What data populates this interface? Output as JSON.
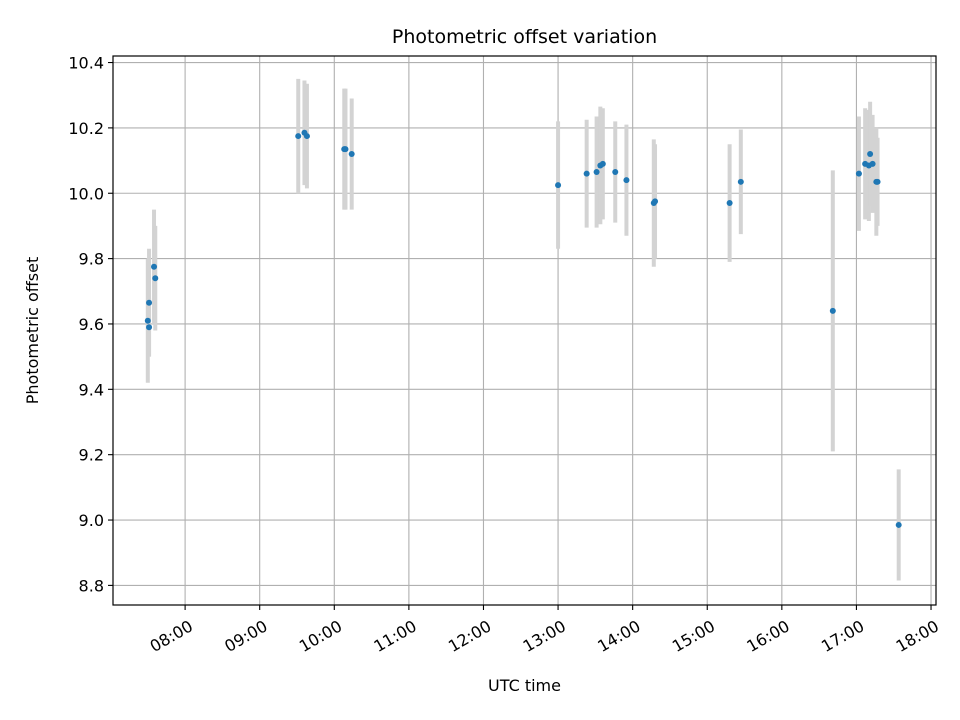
{
  "chart_data": {
    "type": "scatter",
    "title": "Photometric offset variation",
    "xlabel": "UTC time",
    "ylabel": "Photometric offset",
    "x_tick_labels": [
      "08:00",
      "09:00",
      "10:00",
      "11:00",
      "12:00",
      "13:00",
      "14:00",
      "15:00",
      "16:00",
      "17:00",
      "18:00"
    ],
    "y_tick_labels": [
      "8.8",
      "9.0",
      "9.2",
      "9.4",
      "9.6",
      "9.8",
      "10.0",
      "10.2",
      "10.4"
    ],
    "xlim": [
      "07:02",
      "18:04"
    ],
    "ylim": [
      8.74,
      10.42
    ],
    "grid": true,
    "colors": {
      "marker": "#1f77b4",
      "errorbar": "#d3d3d3",
      "grid": "#b0b0b0"
    },
    "points": [
      {
        "x": "07:30",
        "y": 9.61,
        "err": 0.19
      },
      {
        "x": "07:31",
        "y": 9.59,
        "err": 0.09
      },
      {
        "x": "07:31",
        "y": 9.665,
        "err": 0.165
      },
      {
        "x": "07:35",
        "y": 9.775,
        "err": 0.175
      },
      {
        "x": "07:36",
        "y": 9.74,
        "err": 0.16
      },
      {
        "x": "09:31",
        "y": 10.175,
        "err": 0.175
      },
      {
        "x": "09:36",
        "y": 10.185,
        "err": 0.16
      },
      {
        "x": "09:38",
        "y": 10.175,
        "err": 0.16
      },
      {
        "x": "10:08",
        "y": 10.135,
        "err": 0.185
      },
      {
        "x": "10:09",
        "y": 10.135,
        "err": 0.185
      },
      {
        "x": "10:14",
        "y": 10.12,
        "err": 0.17
      },
      {
        "x": "13:00",
        "y": 10.025,
        "err": 0.195
      },
      {
        "x": "13:23",
        "y": 10.06,
        "err": 0.165
      },
      {
        "x": "13:31",
        "y": 10.065,
        "err": 0.17
      },
      {
        "x": "13:34",
        "y": 10.085,
        "err": 0.18
      },
      {
        "x": "13:36",
        "y": 10.09,
        "err": 0.17
      },
      {
        "x": "13:46",
        "y": 10.065,
        "err": 0.155
      },
      {
        "x": "13:55",
        "y": 10.04,
        "err": 0.17
      },
      {
        "x": "14:17",
        "y": 9.97,
        "err": 0.195
      },
      {
        "x": "14:18",
        "y": 9.975,
        "err": 0.175
      },
      {
        "x": "15:18",
        "y": 9.97,
        "err": 0.18
      },
      {
        "x": "15:27",
        "y": 10.035,
        "err": 0.16
      },
      {
        "x": "16:41",
        "y": 9.64,
        "err": 0.43
      },
      {
        "x": "17:02",
        "y": 10.06,
        "err": 0.175
      },
      {
        "x": "17:07",
        "y": 10.09,
        "err": 0.17
      },
      {
        "x": "17:10",
        "y": 10.085,
        "err": 0.17
      },
      {
        "x": "17:11",
        "y": 10.12,
        "err": 0.16
      },
      {
        "x": "17:13",
        "y": 10.09,
        "err": 0.15
      },
      {
        "x": "17:16",
        "y": 10.035,
        "err": 0.165
      },
      {
        "x": "17:17",
        "y": 10.035,
        "err": 0.135
      },
      {
        "x": "17:34",
        "y": 8.985,
        "err": 0.17
      }
    ]
  }
}
